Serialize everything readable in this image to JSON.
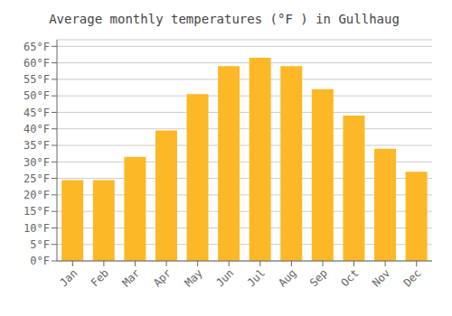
{
  "chart_data": {
    "type": "bar",
    "title": "Average monthly temperatures (°F ) in Gullhaug",
    "categories": [
      "Jan",
      "Feb",
      "Mar",
      "Apr",
      "May",
      "Jun",
      "Jul",
      "Aug",
      "Sep",
      "Oct",
      "Nov",
      "Dec"
    ],
    "values": [
      24.5,
      24.5,
      31.5,
      39.5,
      50.5,
      59.0,
      61.5,
      59.0,
      52.0,
      44.0,
      34.0,
      27.0
    ],
    "color": "#FDB827",
    "ylim": [
      0,
      67
    ],
    "yticks": [
      {
        "value": 0,
        "label": "0°F"
      },
      {
        "value": 5,
        "label": "5°F"
      },
      {
        "value": 10,
        "label": "10°F"
      },
      {
        "value": 15,
        "label": "15°F"
      },
      {
        "value": 20,
        "label": "20°F"
      },
      {
        "value": 25,
        "label": "25°F"
      },
      {
        "value": 30,
        "label": "30°F"
      },
      {
        "value": 35,
        "label": "35°F"
      },
      {
        "value": 40,
        "label": "40°F"
      },
      {
        "value": 45,
        "label": "45°F"
      },
      {
        "value": 50,
        "label": "50°F"
      },
      {
        "value": 55,
        "label": "55°F"
      },
      {
        "value": 60,
        "label": "60°F"
      },
      {
        "value": 65,
        "label": "65°F"
      }
    ],
    "grid": true
  }
}
